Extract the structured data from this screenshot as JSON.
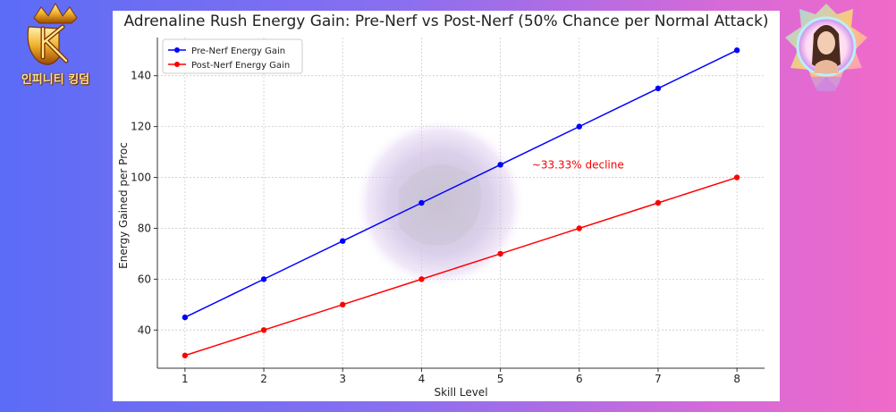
{
  "branding": {
    "logo_text": "인피니티 킹덤",
    "logo_icon": "infinity-kingdom-crown-logo",
    "avatar_icon": "character-portrait-avatar"
  },
  "chart_data": {
    "type": "line",
    "title": "Adrenaline Rush Energy Gain: Pre-Nerf vs Post-Nerf (50% Chance per Normal Attack)",
    "xlabel": "Skill Level",
    "ylabel": "Energy Gained per Proc",
    "x": [
      1,
      2,
      3,
      4,
      5,
      6,
      7,
      8
    ],
    "xlim": [
      0.65,
      8.35
    ],
    "ylim": [
      25,
      155
    ],
    "yticks": [
      40,
      60,
      80,
      100,
      120,
      140
    ],
    "grid": true,
    "legend_position": "top-left",
    "series": [
      {
        "name": "Pre-Nerf Energy Gain",
        "color": "#0000ff",
        "values": [
          45,
          60,
          75,
          90,
          105,
          120,
          135,
          150
        ]
      },
      {
        "name": "Post-Nerf Energy Gain",
        "color": "#ff0000",
        "values": [
          30,
          40,
          50,
          60,
          70,
          80,
          90,
          100
        ]
      }
    ],
    "annotations": [
      {
        "text": "~33.33% decline",
        "x": 5.4,
        "y": 105,
        "color": "#ff0000"
      }
    ]
  }
}
